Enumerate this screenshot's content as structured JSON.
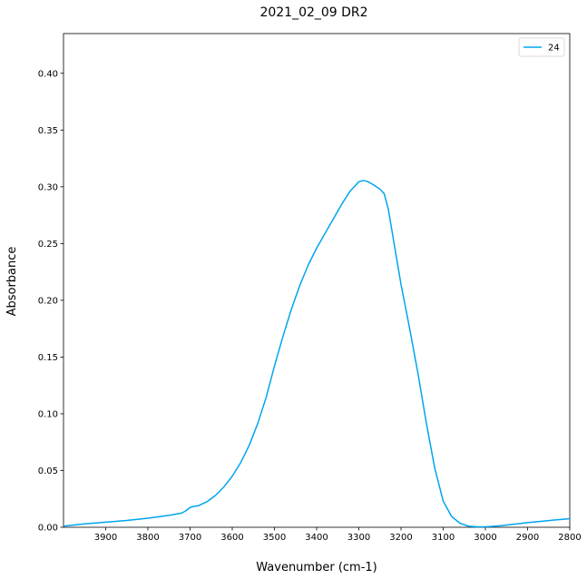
{
  "chart_data": {
    "type": "line",
    "title": "2021_02_09 DR2",
    "xlabel": "Wavenumber (cm-1)",
    "ylabel": "Absorbance",
    "xlim": [
      4000,
      2800
    ],
    "ylim": [
      0.0,
      0.435
    ],
    "x_reversed": true,
    "grid": false,
    "legend_position": "top-right",
    "x_ticks": [
      3900,
      3800,
      3700,
      3600,
      3500,
      3400,
      3300,
      3200,
      3100,
      3000,
      2900,
      2800
    ],
    "y_ticks": [
      "0.00",
      "0.05",
      "0.10",
      "0.15",
      "0.20",
      "0.25",
      "0.30",
      "0.35",
      "0.40"
    ],
    "series": [
      {
        "name": "24",
        "color": "#00a5ef",
        "x": [
          4000,
          3950,
          3900,
          3850,
          3800,
          3750,
          3720,
          3710,
          3700,
          3690,
          3680,
          3660,
          3640,
          3620,
          3600,
          3580,
          3560,
          3540,
          3520,
          3500,
          3480,
          3460,
          3440,
          3420,
          3400,
          3380,
          3360,
          3340,
          3320,
          3300,
          3290,
          3280,
          3270,
          3260,
          3250,
          3240,
          3230,
          3220,
          3210,
          3200,
          3180,
          3160,
          3140,
          3120,
          3100,
          3080,
          3060,
          3040,
          3020,
          3000,
          2980,
          2960,
          2940,
          2920,
          2900,
          2880,
          2860,
          2840,
          2820,
          2800
        ],
        "y": [
          0.001,
          0.003,
          0.0045,
          0.006,
          0.008,
          0.0105,
          0.0125,
          0.0145,
          0.0175,
          0.0185,
          0.019,
          0.0225,
          0.028,
          0.0355,
          0.045,
          0.057,
          0.072,
          0.091,
          0.114,
          0.142,
          0.168,
          0.192,
          0.213,
          0.231,
          0.246,
          0.259,
          0.272,
          0.285,
          0.2965,
          0.3045,
          0.3055,
          0.3048,
          0.3028,
          0.3005,
          0.298,
          0.294,
          0.28,
          0.258,
          0.236,
          0.214,
          0.176,
          0.136,
          0.092,
          0.052,
          0.023,
          0.0095,
          0.0035,
          0.001,
          0.0004,
          0.0004,
          0.0009,
          0.0015,
          0.0024,
          0.0032,
          0.0041,
          0.0048,
          0.0055,
          0.0063,
          0.0069,
          0.0076
        ]
      }
    ]
  }
}
